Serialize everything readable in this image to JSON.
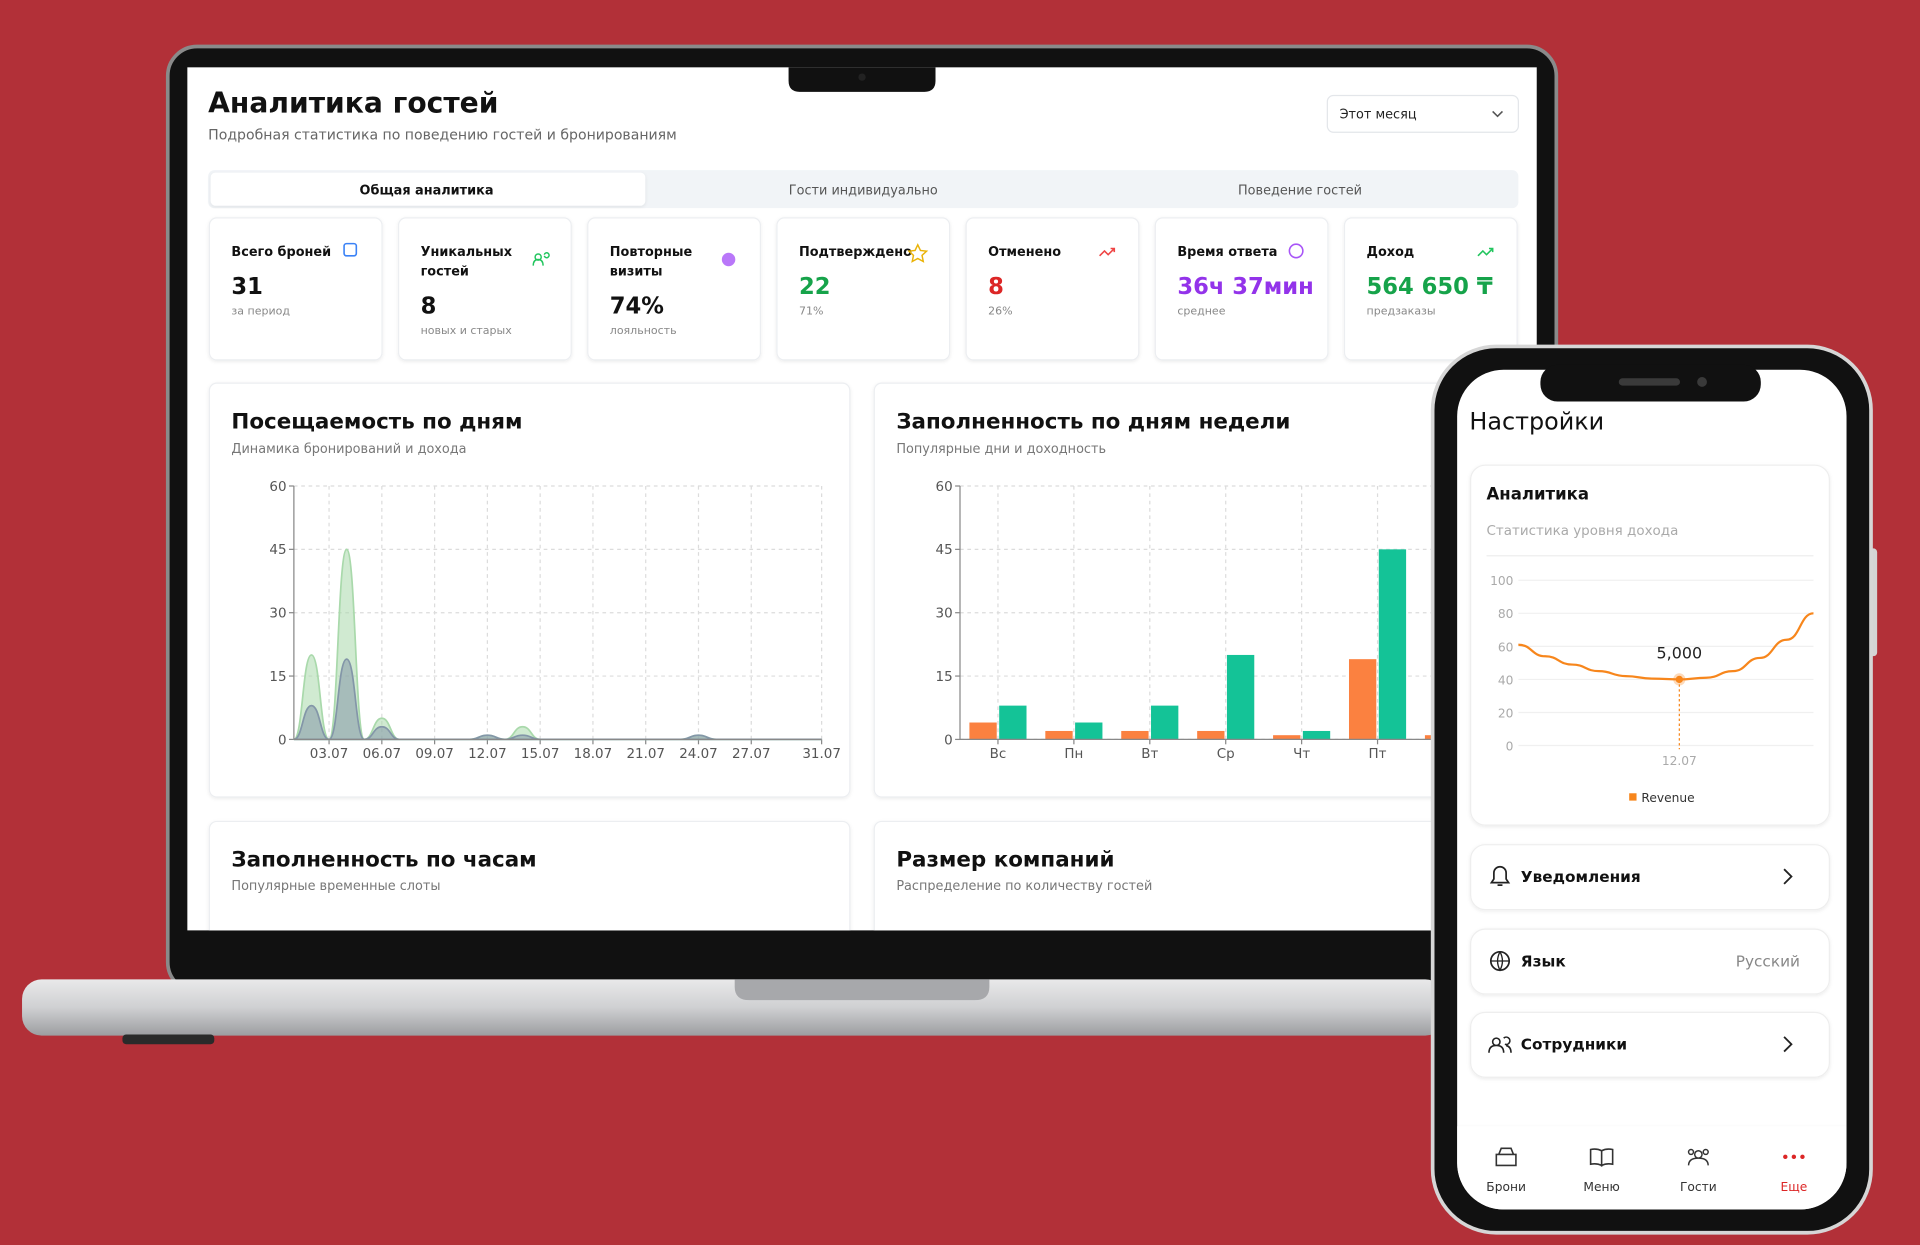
{
  "dashboard": {
    "title": "Аналитика гостей",
    "subtitle": "Подробная статистика по поведению гостей и бронированиям",
    "period": "Этот месяц",
    "tabs": [
      "Общая аналитика",
      "Гости индивидуально",
      "Поведение гостей"
    ],
    "stats": [
      {
        "label": [
          "Всего броней"
        ],
        "value": "31",
        "note": "за период",
        "color": "#111111"
      },
      {
        "label": [
          "Уникальных",
          "гостей"
        ],
        "value": "8",
        "note": "новых и старых",
        "color": "#111111"
      },
      {
        "label": [
          "Повторные",
          "визиты"
        ],
        "value": "74%",
        "note": "лояльность",
        "color": "#111111"
      },
      {
        "label": [
          "Подтверждено"
        ],
        "value": "22",
        "note": "71%",
        "color": "#16a34a"
      },
      {
        "label": [
          "Отменено"
        ],
        "value": "8",
        "note": "26%",
        "color": "#dc2626"
      },
      {
        "label": [
          "Время ответа"
        ],
        "value": "36ч 37мин",
        "note": "среднее",
        "color": "#9333ea"
      },
      {
        "label": [
          "Доход"
        ],
        "value": "564 650 ₸",
        "note": "предзаказы",
        "color": "#16a34a"
      }
    ],
    "sections": [
      {
        "title": "Заполненность по часам",
        "subtitle": "Популярные временные слоты"
      },
      {
        "title": "Размер компаний",
        "subtitle": "Распределение по количеству гостей"
      }
    ]
  },
  "phone": {
    "title": "Настройки",
    "menu": [
      {
        "label": "Уведомления"
      },
      {
        "label": "Язык",
        "value": "Русский"
      },
      {
        "label": "Сотрудники"
      }
    ],
    "nav": [
      "Брони",
      "Меню",
      "Гости",
      "Еще"
    ]
  },
  "chart_data": [
    {
      "type": "area",
      "title": "Посещаемость по дням",
      "subtitle": "Динамика бронирований и дохода",
      "categories": [
        null,
        null,
        "03.07",
        null,
        null,
        "06.07",
        null,
        null,
        "09.07",
        null,
        null,
        "12.07",
        null,
        null,
        "15.07",
        null,
        null,
        "18.07",
        null,
        null,
        "21.07",
        null,
        null,
        "24.07",
        null,
        null,
        "27.07",
        null,
        null,
        null,
        "31.07"
      ],
      "series": [
        {
          "color": "#a9d9ab",
          "values": [
            0,
            20,
            0,
            45,
            0,
            5,
            0,
            0,
            0,
            0,
            0,
            1,
            0,
            3,
            0,
            0,
            0,
            0,
            0,
            0,
            0,
            0,
            0,
            1,
            0,
            0,
            0,
            0,
            0,
            0,
            0
          ]
        },
        {
          "color": "#8396a8",
          "values": [
            0,
            8,
            0,
            19,
            0,
            3,
            0,
            0,
            0,
            0,
            0,
            1,
            0,
            1,
            0,
            0,
            0,
            0,
            0,
            0,
            0,
            0,
            0,
            1,
            0,
            0,
            0,
            0,
            0,
            0,
            0
          ]
        }
      ],
      "ylim": [
        0,
        60
      ],
      "yticks": [
        0,
        15,
        30,
        45,
        60
      ],
      "grid": true
    },
    {
      "type": "bar",
      "title": "Заполненность по дням недели",
      "subtitle": "Популярные дни и доходность",
      "categories": [
        "Вс",
        "Пн",
        "Вт",
        "Ср",
        "Чт",
        "Пт",
        null
      ],
      "series": [
        {
          "color": "#fb8140",
          "values": [
            4,
            2,
            2,
            2,
            1,
            19,
            1
          ]
        },
        {
          "color": "#14c397",
          "values": [
            8,
            4,
            8,
            20,
            2,
            45,
            null
          ]
        }
      ],
      "ylim": [
        0,
        60
      ],
      "yticks": [
        0,
        15,
        30,
        45,
        60
      ],
      "grid": true
    },
    {
      "type": "line",
      "title": "Аналитика",
      "subtitle": "Статистика уровня дохода",
      "categories": [
        null,
        null,
        null,
        null,
        null,
        null,
        "12.07",
        null,
        null,
        null,
        null,
        null
      ],
      "series": [
        {
          "name": "Revenue",
          "color": "#f7861c",
          "values": [
            61,
            54,
            49,
            45,
            42,
            40.5,
            40,
            41,
            45,
            53,
            64,
            80
          ]
        }
      ],
      "annotation": "5,000",
      "ylim": [
        0,
        100
      ],
      "yticks": [
        0,
        20,
        40,
        60,
        80,
        100
      ],
      "grid": true
    }
  ]
}
